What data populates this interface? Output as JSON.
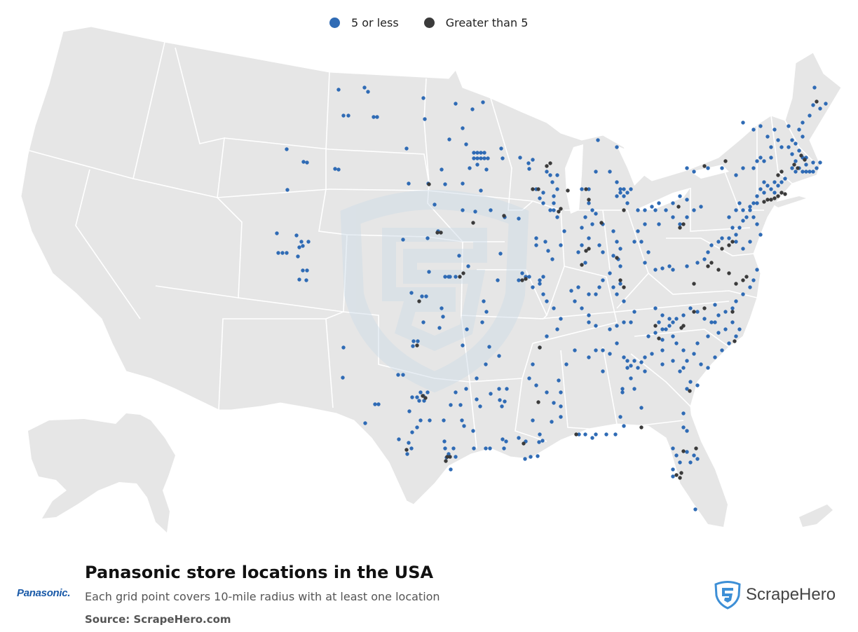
{
  "legend": {
    "small": {
      "label": "5 or less",
      "color": "#2f6bb5"
    },
    "large": {
      "label": "Greater than 5",
      "color": "#3b3b3b"
    }
  },
  "title": "Panasonic store locations in the USA",
  "subtitle": "Each grid point covers 10-mile radius with at least one location",
  "source": "Source: ScrapeHero.com",
  "brand_logo": "Panasonic.",
  "watermark_brand": "ScrapeHero",
  "map": {
    "land_color": "#e6e6e6",
    "border_color": "#ffffff"
  }
}
